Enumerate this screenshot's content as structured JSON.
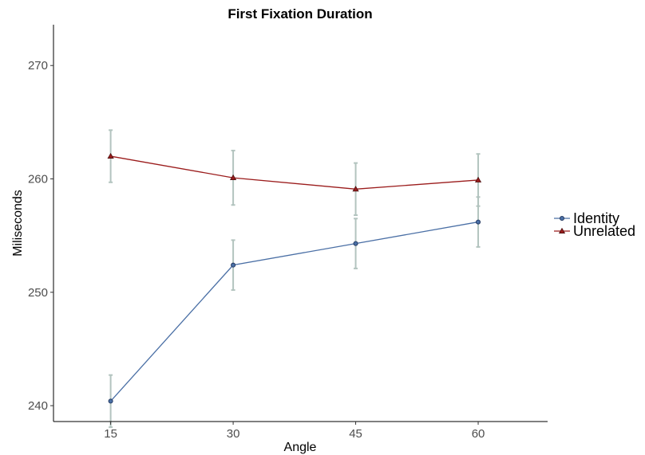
{
  "chart_data": {
    "type": "line",
    "title": "First Fixation Duration",
    "xlabel": "Angle",
    "ylabel": "Miliseconds",
    "x": [
      15,
      30,
      45,
      60
    ],
    "x_ticks": [
      "15",
      "30",
      "45",
      "60"
    ],
    "y_ticks": [
      "240",
      "250",
      "260",
      "270"
    ],
    "xlim": [
      8,
      68.5
    ],
    "ylim": [
      238.6,
      273.6
    ],
    "grid": false,
    "legend_position": "right",
    "series": [
      {
        "name": "Identity",
        "color": "#4a6fa5",
        "marker": "circle",
        "values": [
          240.4,
          252.4,
          254.3,
          256.2
        ],
        "error": [
          2.3,
          2.2,
          2.2,
          2.2
        ]
      },
      {
        "name": "Unrelated",
        "color": "#9b1c1c",
        "marker": "triangle",
        "values": [
          262.0,
          260.1,
          259.1,
          259.9
        ],
        "error": [
          2.3,
          2.4,
          2.3,
          2.3
        ]
      }
    ],
    "error_bar_color": "#b3c4bf"
  }
}
